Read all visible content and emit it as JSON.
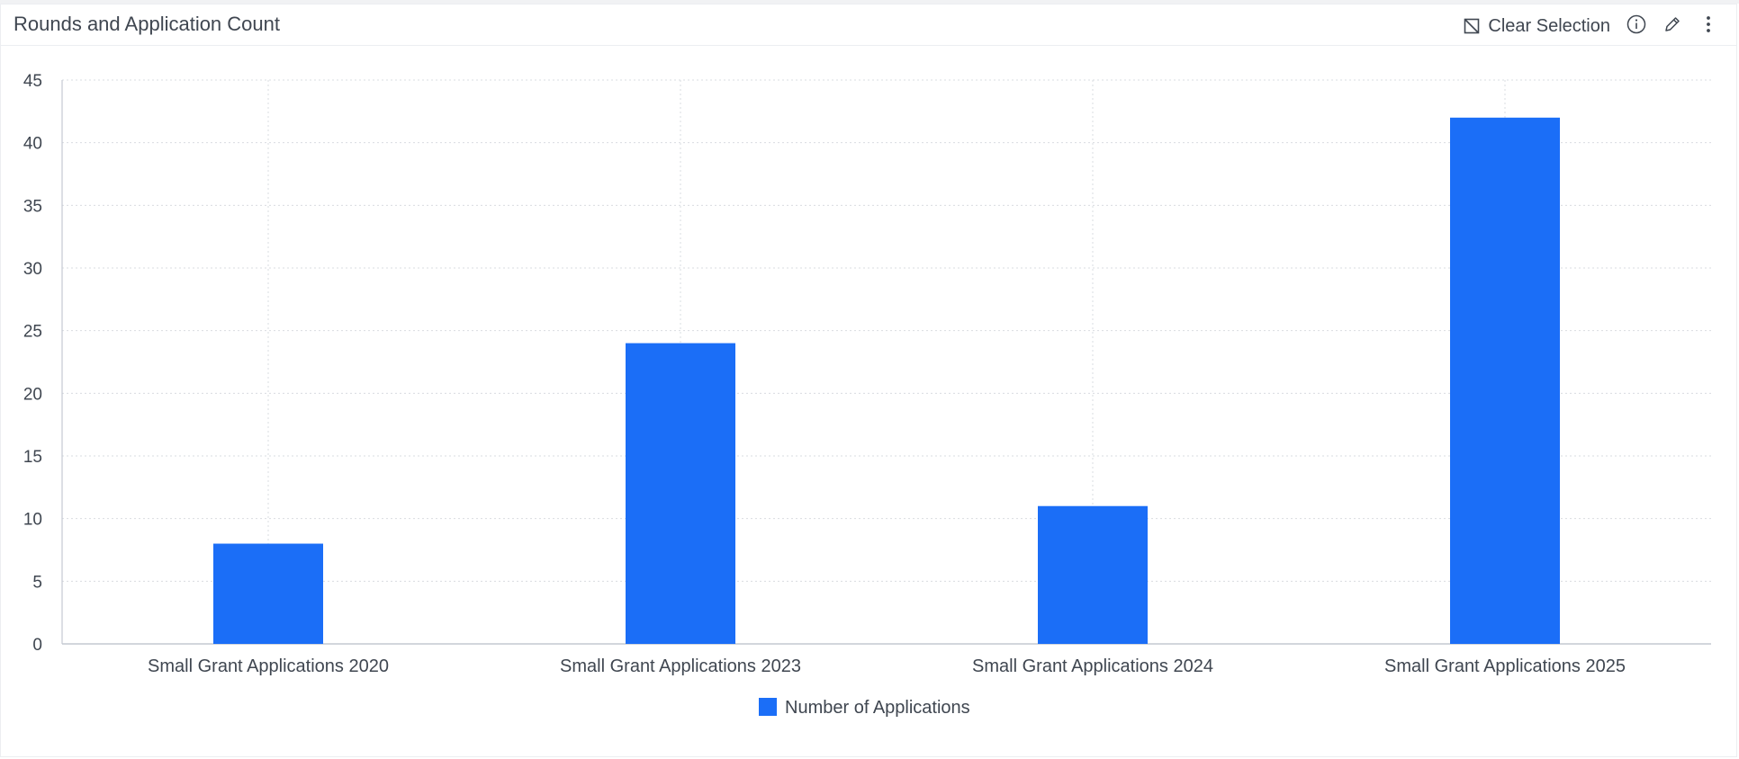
{
  "panel": {
    "title": "Rounds and Application Count"
  },
  "toolbar": {
    "clear_selection_label": "Clear Selection",
    "icons": [
      "clear-selection-icon",
      "info-icon",
      "edit-icon",
      "more-vertical-icon"
    ]
  },
  "colors": {
    "bar": "#1b6ef7",
    "grid": "#d9dce1",
    "axis": "#c4c9d1",
    "text": "#3f4650"
  },
  "chart_data": {
    "type": "bar",
    "title": "Rounds and Application Count",
    "xlabel": "",
    "ylabel": "",
    "categories": [
      "Small Grant Applications 2020",
      "Small Grant Applications 2023",
      "Small Grant Applications 2024",
      "Small Grant Applications 2025"
    ],
    "series": [
      {
        "name": "Number of Applications",
        "values": [
          8,
          24,
          11,
          42
        ]
      }
    ],
    "ylim": [
      0,
      45
    ],
    "yticks": [
      0,
      5,
      10,
      15,
      20,
      25,
      30,
      35,
      40,
      45
    ],
    "grid": true,
    "legend": "bottom-center"
  }
}
